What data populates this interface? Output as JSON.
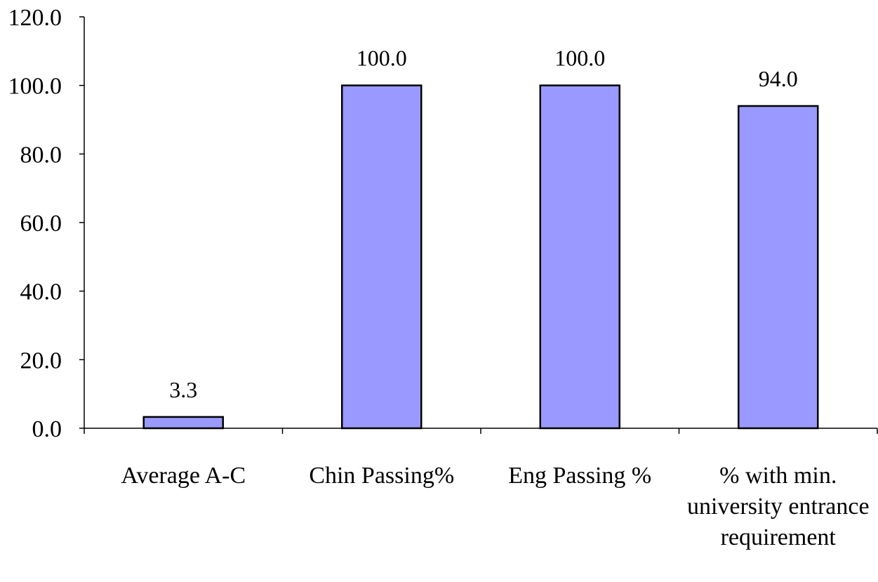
{
  "chart_data": {
    "type": "bar",
    "title": "",
    "xlabel": "",
    "ylabel": "",
    "categories": [
      [
        "Average A-C"
      ],
      [
        "Chin Passing%"
      ],
      [
        "Eng Passing %"
      ],
      [
        "% with min.",
        "university entrance",
        "requirement"
      ]
    ],
    "values": [
      3.3,
      100.0,
      100.0,
      94.0
    ],
    "value_labels": [
      "3.3",
      "100.0",
      "100.0",
      "94.0"
    ],
    "ylim": [
      0,
      120
    ],
    "yticks": [
      "0.0",
      "20.0",
      "40.0",
      "60.0",
      "80.0",
      "100.0",
      "120.0"
    ],
    "bar_color": "#9999ff",
    "grid": false,
    "legend": "none"
  }
}
